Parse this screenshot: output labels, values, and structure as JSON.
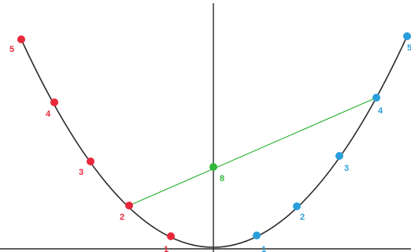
{
  "diagram": {
    "colors": {
      "curve": "#2b2b2b",
      "axes": "#2b2b2b",
      "left_points": "#e8283a",
      "right_points": "#2a9fdc",
      "chord": "#33b83c",
      "midpoint": "#33b83c"
    },
    "left_points": [
      {
        "label": "1"
      },
      {
        "label": "2"
      },
      {
        "label": "3"
      },
      {
        "label": "4"
      },
      {
        "label": "5"
      }
    ],
    "right_points": [
      {
        "label": "1"
      },
      {
        "label": "2"
      },
      {
        "label": "3"
      },
      {
        "label": "4"
      },
      {
        "label": "5"
      }
    ],
    "midpoint": {
      "label": "8"
    }
  }
}
